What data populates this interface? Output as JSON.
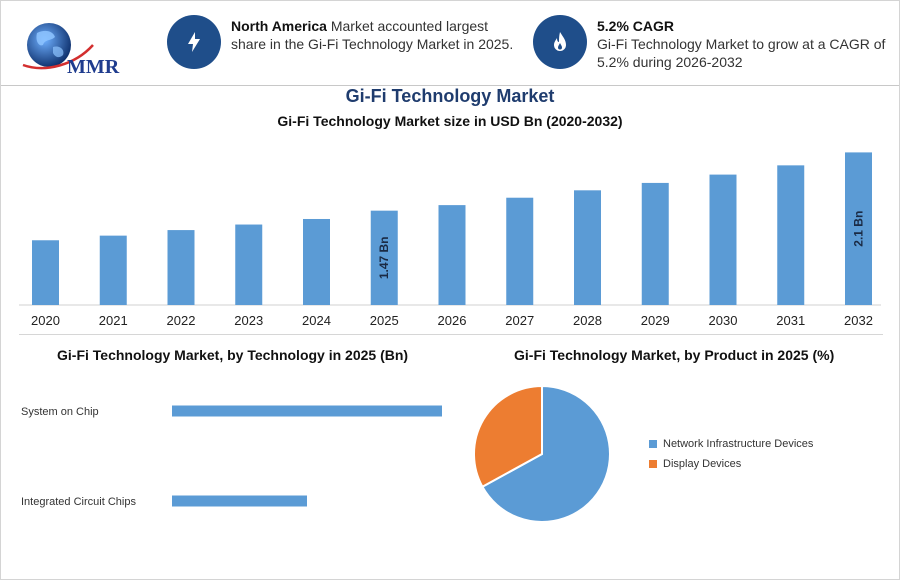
{
  "header": {
    "logo": {
      "text": "MMR",
      "colors": {
        "globe": "#1f5aa6",
        "land": "#3a7fcf",
        "text": "#1f3c8e",
        "swoosh": "#d32f2f"
      }
    },
    "info_1": {
      "icon": "lightning-icon",
      "bold": "North America",
      "line1": " Market accounted largest",
      "line2": "share in the Gi-Fi Technology Market in 2025."
    },
    "info_2": {
      "icon": "flame-icon",
      "bold": "5.2% CAGR",
      "line1": "Gi-Fi Technology Market to grow at a CAGR of",
      "line2": "5.2% during 2026-2032"
    }
  },
  "colors": {
    "accent": "#1f4e8a",
    "bar": "#5b9bd5",
    "pie_secondary": "#ed7d31",
    "title": "#1f3c6e"
  },
  "chart_data": [
    {
      "type": "bar",
      "title": "Gi-Fi Technology Market",
      "subtitle": "Gi-Fi Technology Market size in USD Bn (2020-2032)",
      "categories": [
        "2020",
        "2021",
        "2022",
        "2023",
        "2024",
        "2025",
        "2026",
        "2027",
        "2028",
        "2029",
        "2030",
        "2031",
        "2032"
      ],
      "values": [
        1.15,
        1.2,
        1.26,
        1.32,
        1.38,
        1.47,
        1.53,
        1.61,
        1.69,
        1.77,
        1.86,
        1.96,
        2.1
      ],
      "data_labels": {
        "2025": "1.47 Bn",
        "2032": "2.1 Bn"
      },
      "ylim": [
        0.45,
        2.18
      ],
      "grid": false,
      "legend": "none"
    },
    {
      "type": "bar",
      "orientation": "horizontal",
      "title": "Gi-Fi Technology Market, by Technology in 2025 (Bn)",
      "categories": [
        "System on Chip",
        "Integrated Circuit Chips"
      ],
      "values": [
        1.0,
        0.5
      ],
      "xlim": [
        0,
        1.0
      ],
      "grid": false
    },
    {
      "type": "pie",
      "title": "Gi-Fi Technology Market, by Product in 2025 (%)",
      "labels": [
        "Network Infrastructure Devices",
        "Display Devices"
      ],
      "values": [
        67,
        33
      ],
      "colors": [
        "#5b9bd5",
        "#ed7d31"
      ],
      "legend": "right"
    }
  ]
}
